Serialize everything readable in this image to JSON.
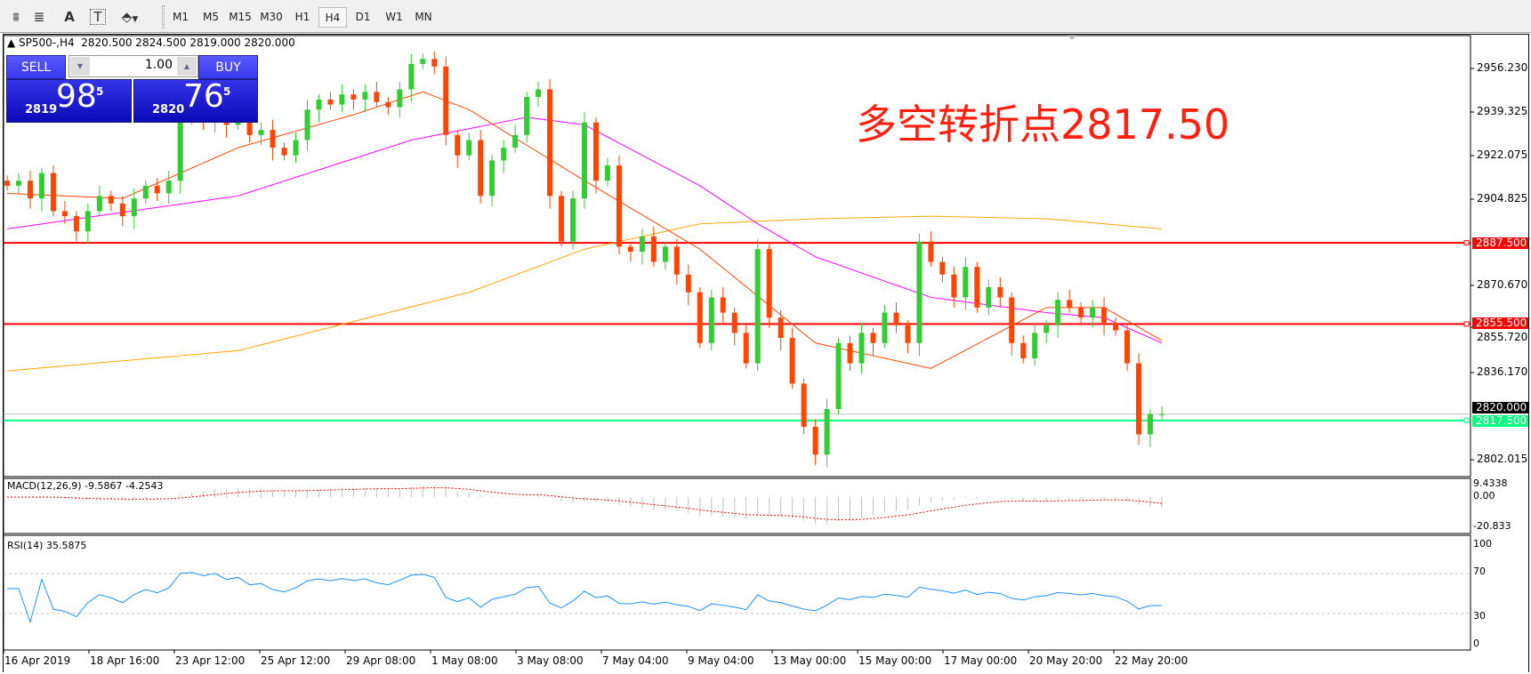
{
  "toolbar": {
    "icons": [
      "elliott-wave-icon",
      "fibonacci-icon",
      "text-icon",
      "text-label-icon",
      "arrows-icon"
    ],
    "icon_glyphs": [
      "⩩",
      "≣",
      "A",
      "T",
      "⬘"
    ],
    "timeframes": [
      "M1",
      "M5",
      "M15",
      "M30",
      "H1",
      "H4",
      "D1",
      "W1",
      "MN"
    ],
    "selected_timeframe": "H4"
  },
  "chart": {
    "legend": "SP500-,H4  2820.500 2824.500 2819.000 2820.000",
    "annotation": "多空转折点2817.50",
    "trade_panel": {
      "sell_label": "SELL",
      "buy_label": "BUY",
      "quantity": "1.00",
      "sell_price_prefix": "2819",
      "sell_price_big": "98",
      "sell_price_sup": "5",
      "buy_price_prefix": "2820",
      "buy_price_big": "76",
      "buy_price_sup": "5"
    },
    "price_axis": [
      "2956.230",
      "2939.325",
      "2922.075",
      "2904.825",
      "2870.670",
      "2855.720",
      "2836.170",
      "2802.015"
    ],
    "hlines": [
      {
        "price": "2887.500",
        "color": "#ff0000"
      },
      {
        "price": "2855.500",
        "color": "#ff0000"
      },
      {
        "price": "2817.500",
        "color": "#00ff7f"
      }
    ],
    "current_price": "2820.000",
    "macd": {
      "label": "MACD(12,26,9) -9.5867 -4.2543",
      "axis": [
        "9.4338",
        "0.00",
        "-20.833"
      ]
    },
    "rsi": {
      "label": "RSI(14) 35.5875",
      "axis": [
        "100",
        "70",
        "30",
        "0"
      ]
    },
    "dates": [
      "16 Apr 2019",
      "18 Apr 16:00",
      "23 Apr 12:00",
      "25 Apr 12:00",
      "29 Apr 08:00",
      "1 May 08:00",
      "3 May 08:00",
      "7 May 04:00",
      "9 May 04:00",
      "13 May 00:00",
      "15 May 00:00",
      "17 May 00:00",
      "20 May 20:00",
      "22 May 20:00"
    ]
  },
  "chart_data": {
    "type": "candlestick",
    "symbol": "SP500-",
    "timeframe": "H4",
    "ylim": [
      2802.015,
      2956.23
    ],
    "bull_color": "#32cd32",
    "bear_color": "#ff4500",
    "close": [
      2910,
      2912,
      2905,
      2915,
      2900,
      2898,
      2892,
      2900,
      2906,
      2903,
      2898,
      2905,
      2910,
      2907,
      2912,
      2936,
      2938,
      2935,
      2940,
      2934,
      2938,
      2930,
      2932,
      2925,
      2922,
      2928,
      2940,
      2944,
      2942,
      2946,
      2944,
      2947,
      2943,
      2941,
      2948,
      2958,
      2960,
      2957,
      2930,
      2922,
      2928,
      2906,
      2920,
      2925,
      2930,
      2945,
      2948,
      2906,
      2888,
      2905,
      2935,
      2912,
      2918,
      2886,
      2884,
      2890,
      2880,
      2886,
      2875,
      2868,
      2848,
      2866,
      2860,
      2852,
      2840,
      2885,
      2858,
      2850,
      2832,
      2815,
      2804,
      2822,
      2848,
      2840,
      2852,
      2848,
      2860,
      2855,
      2848,
      2888,
      2880,
      2875,
      2866,
      2878,
      2862,
      2870,
      2866,
      2848,
      2842,
      2852,
      2855,
      2865,
      2862,
      2858,
      2862,
      2856,
      2853,
      2840,
      2812,
      2820,
      2820
    ],
    "ma_fast": {
      "color": "#ff4500",
      "index": [
        0,
        10,
        20,
        30,
        36,
        40,
        50,
        60,
        70,
        80,
        85,
        90,
        95,
        100
      ],
      "value": [
        2907,
        2905,
        2925,
        2938,
        2947,
        2940,
        2912,
        2885,
        2848,
        2838,
        2850,
        2862,
        2862,
        2849
      ]
    },
    "ma_mid": {
      "color": "#ff00ff",
      "index": [
        0,
        20,
        35,
        45,
        50,
        60,
        65,
        70,
        80,
        90,
        95,
        100
      ],
      "value": [
        2893,
        2906,
        2928,
        2937,
        2934,
        2910,
        2895,
        2882,
        2866,
        2860,
        2858,
        2848
      ]
    },
    "ma_slow": {
      "color": "#ffa500",
      "index": [
        0,
        20,
        40,
        50,
        60,
        70,
        80,
        90,
        100
      ],
      "value": [
        2837,
        2845,
        2868,
        2885,
        2895,
        2897,
        2898,
        2897,
        2893
      ]
    }
  }
}
